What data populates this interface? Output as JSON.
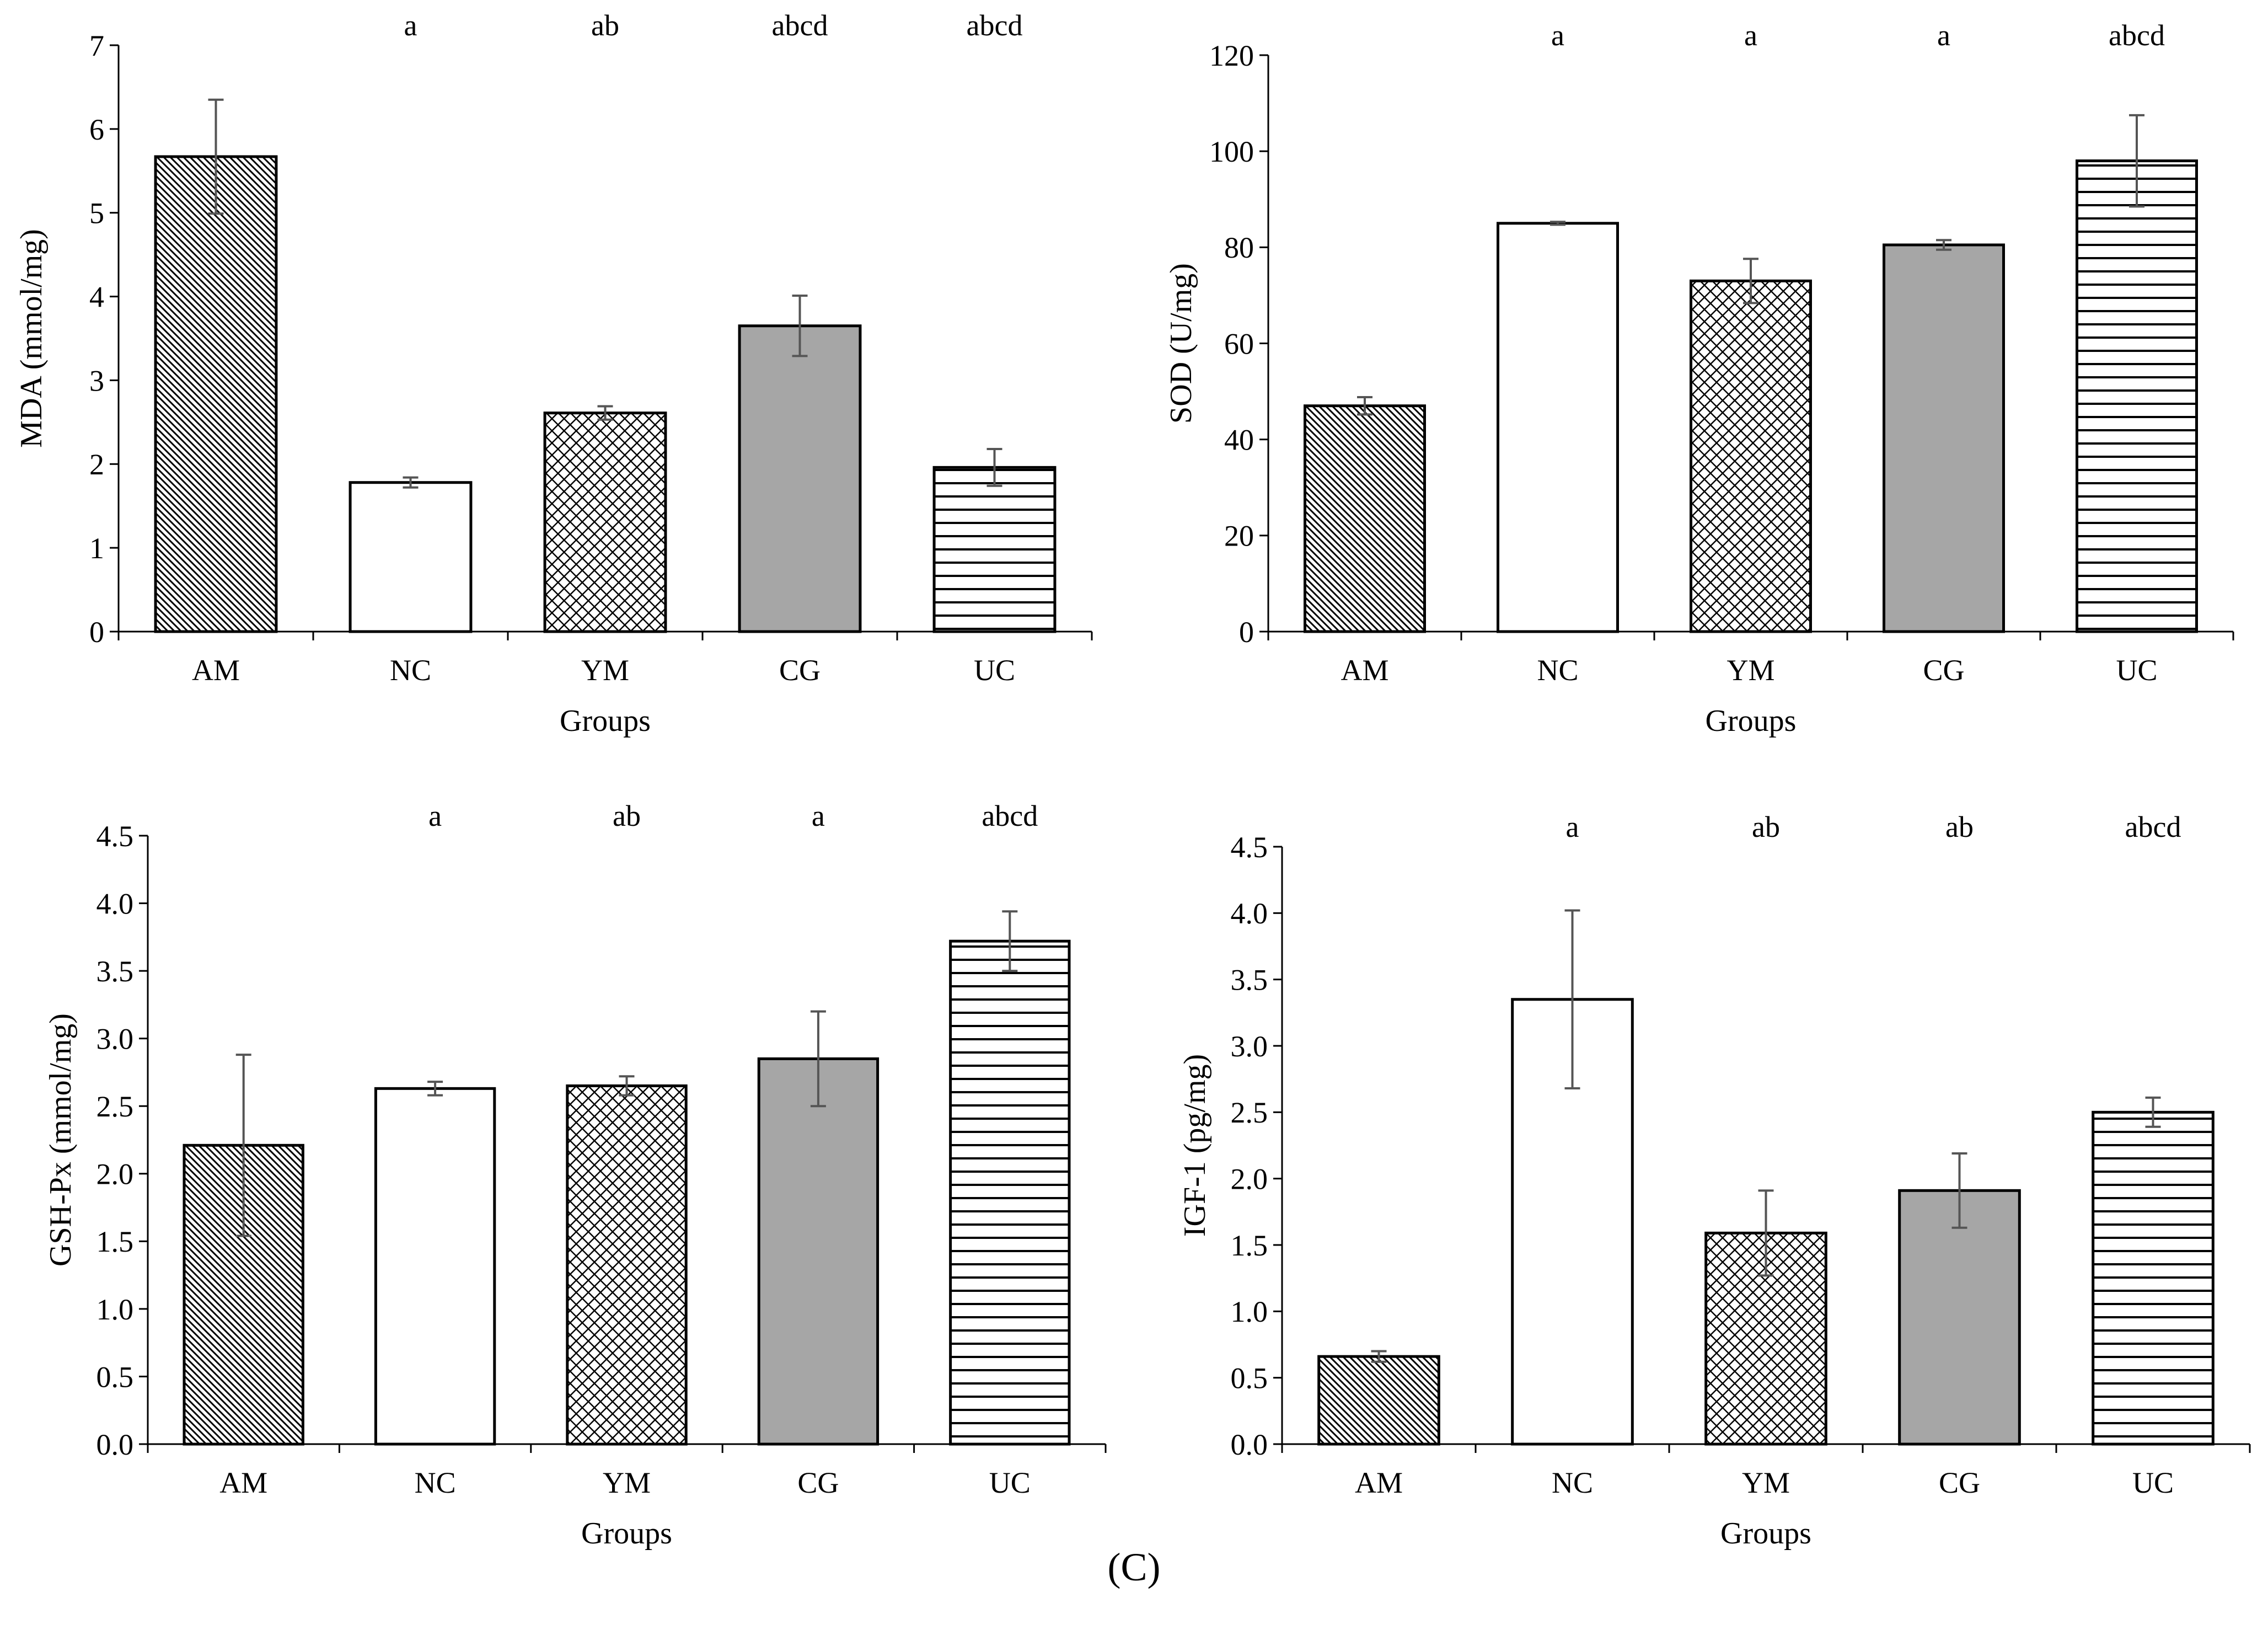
{
  "caption": "(C)",
  "colors": {
    "axis": "#000000",
    "bar_edge": "#000000",
    "errorbar": "#555555",
    "gray_fill": "#a6a6a6",
    "white_fill": "#ffffff"
  },
  "chart_data": [
    {
      "type": "bar",
      "ylabel": "MDA (mmol/mg)",
      "xlabel": "Groups",
      "categories": [
        "AM",
        "NC",
        "YM",
        "CG",
        "UC"
      ],
      "patterns": [
        "diagonal",
        "none",
        "crosshatch",
        "gray",
        "horizontal"
      ],
      "values": [
        5.67,
        1.78,
        2.61,
        3.65,
        1.96
      ],
      "errors": [
        0.68,
        0.06,
        0.08,
        0.36,
        0.22
      ],
      "significance": [
        "",
        "a",
        "ab",
        "abcd",
        "abcd"
      ],
      "ylim": [
        0,
        7
      ],
      "yticks": [
        0,
        1,
        2,
        3,
        4,
        5,
        6,
        7
      ],
      "ytick_labels": [
        "0",
        "1",
        "2",
        "3",
        "4",
        "5",
        "6",
        "7"
      ]
    },
    {
      "type": "bar",
      "ylabel": "SOD (U/mg)",
      "xlabel": "Groups",
      "categories": [
        "AM",
        "NC",
        "YM",
        "CG",
        "UC"
      ],
      "patterns": [
        "diagonal",
        "none",
        "crosshatch",
        "gray",
        "horizontal"
      ],
      "values": [
        47,
        85,
        73,
        80.5,
        98
      ],
      "errors": [
        1.8,
        0.3,
        4.6,
        1.0,
        9.5
      ],
      "significance": [
        "",
        "a",
        "a",
        "a",
        "abcd"
      ],
      "ylim": [
        0,
        120
      ],
      "yticks": [
        0,
        20,
        40,
        60,
        80,
        100,
        120
      ],
      "ytick_labels": [
        "0",
        "20",
        "40",
        "60",
        "80",
        "100",
        "120"
      ]
    },
    {
      "type": "bar",
      "ylabel": "GSH-Px (mmol/mg)",
      "xlabel": "Groups",
      "categories": [
        "AM",
        "NC",
        "YM",
        "CG",
        "UC"
      ],
      "patterns": [
        "diagonal",
        "none",
        "crosshatch",
        "gray",
        "horizontal"
      ],
      "values": [
        2.21,
        2.63,
        2.65,
        2.85,
        3.72
      ],
      "errors": [
        0.67,
        0.05,
        0.07,
        0.35,
        0.22
      ],
      "significance": [
        "",
        "a",
        "ab",
        "a",
        "abcd"
      ],
      "ylim": [
        0,
        4.5
      ],
      "yticks": [
        0,
        0.5,
        1,
        1.5,
        2,
        2.5,
        3,
        3.5,
        4,
        4.5
      ],
      "ytick_labels": [
        "0.0",
        "0.5",
        "1.0",
        "1.5",
        "2.0",
        "2.5",
        "3.0",
        "3.5",
        "4.0",
        "4.5"
      ]
    },
    {
      "type": "bar",
      "ylabel": "IGF-1 (pg/mg)",
      "xlabel": "Groups",
      "categories": [
        "AM",
        "NC",
        "YM",
        "CG",
        "UC"
      ],
      "patterns": [
        "diagonal",
        "none",
        "crosshatch",
        "gray",
        "horizontal"
      ],
      "values": [
        0.66,
        3.35,
        1.59,
        1.91,
        2.5
      ],
      "errors": [
        0.04,
        0.67,
        0.32,
        0.28,
        0.11
      ],
      "significance": [
        "",
        "a",
        "ab",
        "ab",
        "abcd"
      ],
      "ylim": [
        0,
        4.5
      ],
      "yticks": [
        0,
        0.5,
        1,
        1.5,
        2,
        2.5,
        3,
        3.5,
        4,
        4.5
      ],
      "ytick_labels": [
        "0.0",
        "0.5",
        "1.0",
        "1.5",
        "2.0",
        "2.5",
        "3.0",
        "3.5",
        "4.0",
        "4.5"
      ]
    }
  ]
}
